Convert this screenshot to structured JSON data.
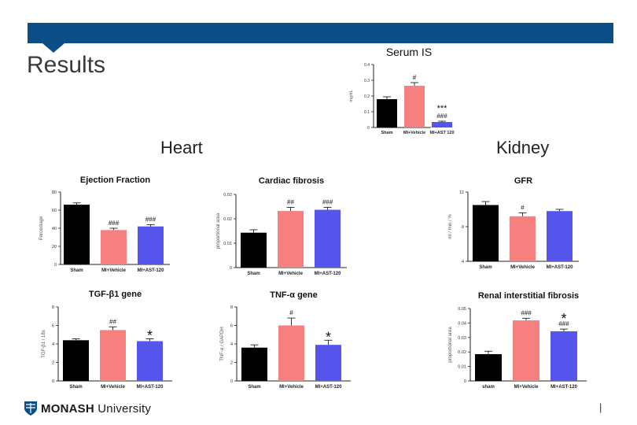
{
  "header": {
    "title": "Results"
  },
  "sections": {
    "heart": "Heart",
    "kidney": "Kidney"
  },
  "footer": {
    "logo_bold": "MONASH",
    "logo_light": " University",
    "page_marker": "|"
  },
  "colors": {
    "sham": "#000000",
    "vehicle": "#f67f7f",
    "ast120": "#5555ee",
    "banner": "#0b4f86"
  },
  "chart_data": [
    {
      "id": "serum-is",
      "type": "bar",
      "title": "Serum IS",
      "ylabel": "mg/dL",
      "ylim": [
        0,
        0.4
      ],
      "ticks": [
        0,
        0.1,
        0.2,
        0.3,
        0.4
      ],
      "categories": [
        "Sham",
        "MI+Vehicle",
        "MI+AST 120"
      ],
      "values": [
        0.18,
        0.265,
        0.035
      ],
      "errors": [
        0.015,
        0.02,
        0.005
      ],
      "annotations": [
        [
          "",
          ""
        ],
        [
          "#",
          ""
        ],
        [
          "***",
          "###"
        ]
      ]
    },
    {
      "id": "ejection-fraction",
      "type": "bar",
      "title": "Ejection Fraction",
      "ylabel": "Percentage",
      "ylim": [
        0,
        80
      ],
      "ticks": [
        0,
        20,
        40,
        60,
        80
      ],
      "categories": [
        "Sham",
        "MI+Vehicle",
        "MI+AST-120"
      ],
      "values": [
        66,
        38,
        42
      ],
      "errors": [
        2,
        2,
        2
      ],
      "annotations": [
        [
          ""
        ],
        [
          "###"
        ],
        [
          "###"
        ]
      ]
    },
    {
      "id": "cardiac-fibrosis",
      "type": "bar",
      "title": "Cardiac fibrosis",
      "ylabel": "proportional area",
      "ylim": [
        0,
        0.03
      ],
      "ticks": [
        0,
        0.01,
        0.02,
        0.03
      ],
      "categories": [
        "Sham",
        "MI+Vehicle",
        "MI+AST-120"
      ],
      "values": [
        0.0143,
        0.0232,
        0.0237
      ],
      "errors": [
        0.0012,
        0.0015,
        0.001
      ],
      "annotations": [
        [
          ""
        ],
        [
          "##"
        ],
        [
          "###"
        ]
      ]
    },
    {
      "id": "gfr",
      "type": "bar",
      "title": "GFR",
      "ylabel": "ml / min / %",
      "ylim": [
        4,
        12
      ],
      "ticks": [
        4,
        8,
        12
      ],
      "categories": [
        "Sham",
        "MI+Vehicle",
        "MI+AST-120"
      ],
      "values": [
        10.5,
        9.2,
        9.8
      ],
      "errors": [
        0.4,
        0.4,
        0.2
      ],
      "annotations": [
        [
          ""
        ],
        [
          "#"
        ],
        [
          ""
        ]
      ]
    },
    {
      "id": "tgf-beta1-gene",
      "type": "bar",
      "title": "TGF-β1 gene",
      "ylabel": "TGF-β1 / 18s",
      "ylim": [
        0,
        8
      ],
      "ticks": [
        0,
        2,
        4,
        6,
        8
      ],
      "categories": [
        "Sham",
        "MI+Vehicle",
        "MI+AST-120"
      ],
      "values": [
        4.4,
        5.5,
        4.3
      ],
      "errors": [
        0.15,
        0.35,
        0.25
      ],
      "annotations": [
        [
          ""
        ],
        [
          "##"
        ],
        [
          "*"
        ]
      ]
    },
    {
      "id": "tnf-alpha-gene",
      "type": "bar",
      "title": "TNF-α gene",
      "ylabel": "TNF-α / GAPDH",
      "ylim": [
        0,
        8
      ],
      "ticks": [
        0,
        2,
        4,
        6,
        8
      ],
      "categories": [
        "Sham",
        "MI+Vehicle",
        "MI+AST-120"
      ],
      "values": [
        3.6,
        6.0,
        3.9
      ],
      "errors": [
        0.3,
        0.8,
        0.5
      ],
      "annotations": [
        [
          ""
        ],
        [
          "#"
        ],
        [
          "*"
        ]
      ]
    },
    {
      "id": "renal-interstitial-fibrosis",
      "type": "bar",
      "title": "Renal interstitial fibrosis",
      "ylabel": "proportional area",
      "ylim": [
        0,
        0.05
      ],
      "ticks": [
        0,
        0.01,
        0.02,
        0.03,
        0.04,
        0.05
      ],
      "categories": [
        "sham",
        "MI+Vehicle",
        "MI+AST-120"
      ],
      "values": [
        0.0185,
        0.0418,
        0.0343
      ],
      "errors": [
        0.002,
        0.0015,
        0.0015
      ],
      "annotations": [
        [
          ""
        ],
        [
          "###"
        ],
        [
          "*",
          "###"
        ]
      ]
    }
  ]
}
